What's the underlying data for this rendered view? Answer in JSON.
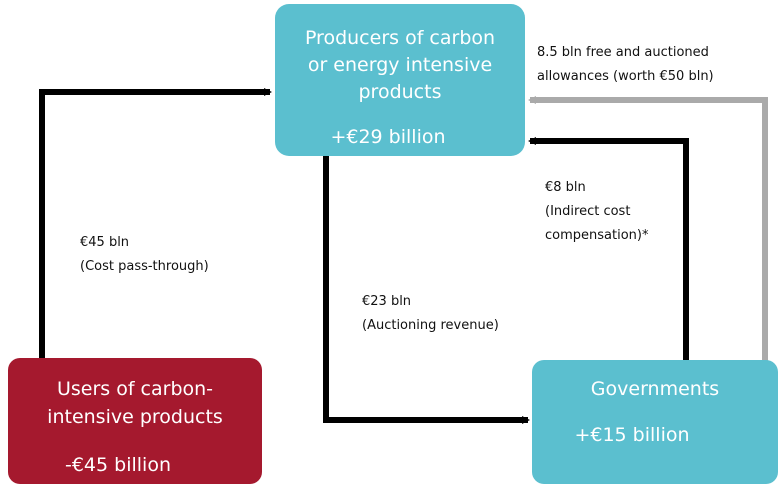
{
  "nodes": [
    {
      "lines": [
        "Producers of carbon",
        "or  energy intensive",
        "products"
      ],
      "value": "+€29 billion"
    },
    {
      "lines": [
        "Users of carbon-",
        "intensive products"
      ],
      "value": "-€45 billion"
    },
    {
      "lines": [
        "Governments"
      ],
      "value": "+€15 billion"
    }
  ],
  "edges": [
    {
      "lines": [
        "€45  bln",
        "(Cost pass-through)"
      ]
    },
    {
      "lines": [
        "€23  bln",
        "(Auctioning revenue)"
      ]
    },
    {
      "lines": [
        "€8  bln",
        "(Indirect cost",
        "compensation)*"
      ]
    },
    {
      "lines": [
        "8.5 bln free and auctioned",
        "allowances (worth €50  bln)"
      ]
    }
  ]
}
